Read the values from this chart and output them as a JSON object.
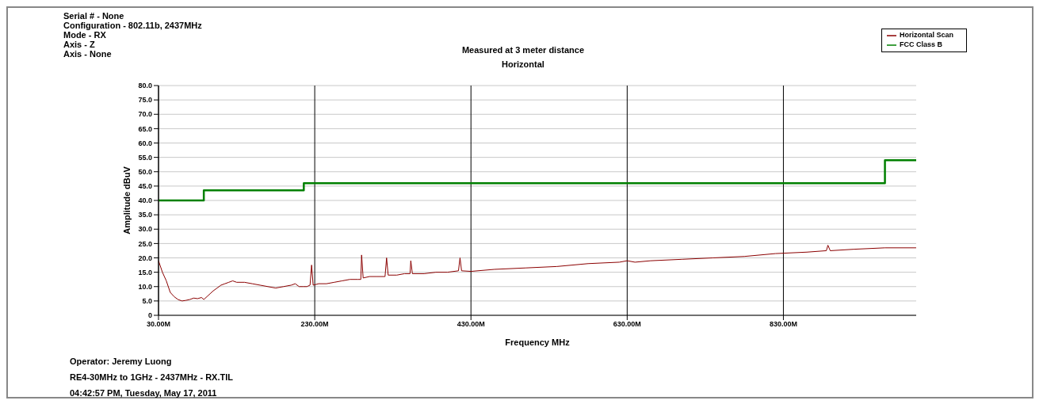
{
  "chart_data": {
    "type": "line",
    "subtitle": "Measured at 3 meter distance\nHorizontal",
    "xlabel": "Frequency MHz",
    "ylabel": "Amplitude dBuV",
    "annotations": [
      "Serial # - None",
      "Configuration - 802.11b, 2437MHz",
      "Mode - RX",
      "Axis - Z",
      "Axis - None",
      "Operator: Jeremy Luong",
      "RE4-30MHz to 1GHz  - 2437MHz - RX.TIL",
      "04:42:57 PM, Tuesday, May 17, 2011"
    ],
    "series": [
      {
        "name": "Horizontal Scan",
        "color": "#8b0000",
        "x": [
          30,
          35,
          40,
          45,
          50,
          55,
          60,
          65,
          70,
          75,
          80,
          85,
          88,
          92,
          96,
          100,
          105,
          110,
          115,
          120,
          125,
          130,
          140,
          150,
          160,
          170,
          180,
          190,
          200,
          205,
          210,
          215,
          220,
          224,
          226,
          228,
          235,
          245,
          255,
          265,
          275,
          285,
          289,
          290,
          292,
          300,
          310,
          320,
          322,
          324,
          335,
          345,
          352,
          353,
          355,
          370,
          385,
          400,
          414,
          416,
          418,
          430,
          460,
          500,
          540,
          580,
          620,
          630,
          640,
          660,
          700,
          740,
          780,
          820,
          860,
          885,
          887,
          890,
          920,
          960,
          1000
        ],
        "values": [
          19,
          15,
          12,
          8,
          6.5,
          5.5,
          5,
          5.2,
          5.5,
          6,
          5.8,
          6.2,
          5.5,
          6.5,
          7.5,
          8.5,
          9.5,
          10.5,
          11,
          11.5,
          12,
          11.5,
          11.5,
          11,
          10.5,
          10,
          9.5,
          10,
          10.5,
          11,
          10,
          10,
          10,
          10.5,
          17.5,
          10.5,
          11,
          11,
          11.5,
          12,
          12.5,
          12.5,
          12.5,
          21,
          13,
          13.5,
          13.5,
          13.5,
          20,
          14,
          14,
          14.5,
          14.5,
          19,
          14.5,
          14.5,
          15,
          15,
          15.5,
          20,
          15.5,
          15.3,
          16,
          16.5,
          17,
          18,
          18.5,
          19,
          18.5,
          19,
          19.5,
          20,
          20.5,
          21.5,
          22,
          22.5,
          24.4,
          22.5,
          23,
          23.5,
          23.5
        ]
      },
      {
        "name": "FCC Class B",
        "color": "#008000",
        "type": "step",
        "x": [
          30,
          88,
          216,
          960,
          1000
        ],
        "values": [
          40,
          43.5,
          46,
          54,
          54
        ]
      }
    ],
    "xlim": [
      30,
      1000
    ],
    "xticks": [
      {
        "value": 30,
        "label": "30.00M"
      },
      {
        "value": 230,
        "label": "230.00M"
      },
      {
        "value": 430,
        "label": "430.00M"
      },
      {
        "value": 630,
        "label": "630.00M"
      },
      {
        "value": 830,
        "label": "830.00M"
      }
    ],
    "ylim": [
      0,
      80
    ],
    "yticks": [
      0,
      {
        "value": 5,
        "label": "5.0"
      },
      {
        "value": 10,
        "label": "10.0"
      },
      {
        "value": 15,
        "label": "15.0"
      },
      {
        "value": 20,
        "label": "20.0"
      },
      {
        "value": 25,
        "label": "25.0"
      },
      {
        "value": 30,
        "label": "30.0"
      },
      {
        "value": 35,
        "label": "35.0"
      },
      {
        "value": 40,
        "label": "40.0"
      },
      {
        "value": 45,
        "label": "45.0"
      },
      {
        "value": 50,
        "label": "50.0"
      },
      {
        "value": 55,
        "label": "55.0"
      },
      {
        "value": 60,
        "label": "60.0"
      },
      {
        "value": 65,
        "label": "65.0"
      },
      {
        "value": 70,
        "label": "70.0"
      },
      {
        "value": 75,
        "label": "75.0"
      },
      {
        "value": 80,
        "label": "80.0"
      }
    ],
    "grid": true,
    "legend": "top right",
    "marker": "none"
  }
}
